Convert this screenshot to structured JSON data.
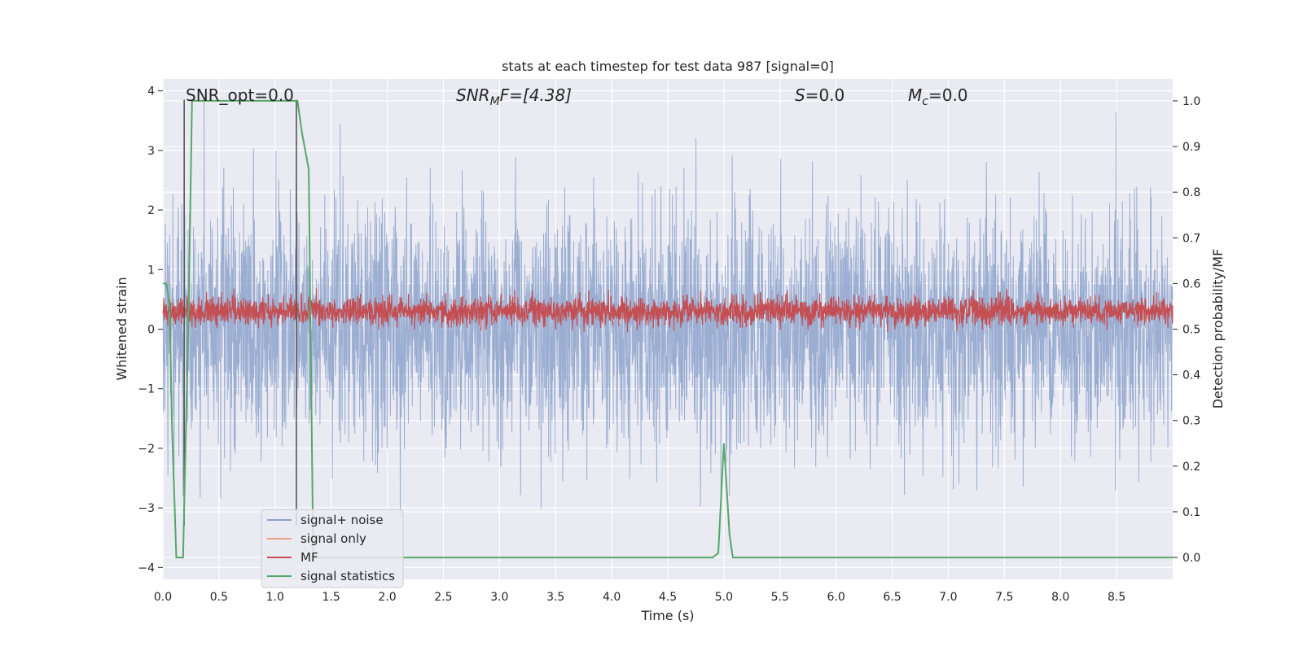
{
  "chart_data": {
    "type": "line",
    "title": "stats at each timestep for test data 987 [signal=0]",
    "xlabel": "Time (s)",
    "ylabel": "Whitened strain",
    "y2label": "Detection probability/MF",
    "xlim": [
      0.0,
      9.0
    ],
    "ylim": [
      -4.2,
      4.2
    ],
    "y2lim": [
      -0.048,
      1.048
    ],
    "xticks": [
      "0.0",
      "0.5",
      "1.0",
      "1.5",
      "2.0",
      "2.5",
      "3.0",
      "3.5",
      "4.0",
      "4.5",
      "5.0",
      "5.5",
      "6.0",
      "6.5",
      "7.0",
      "7.5",
      "8.0",
      "8.5"
    ],
    "yticks": [
      "4",
      "3",
      "2",
      "1",
      "0",
      "−1",
      "−2",
      "−3",
      "−4"
    ],
    "y2ticks": [
      "1.0",
      "0.9",
      "0.8",
      "0.7",
      "0.6",
      "0.5",
      "0.4",
      "0.3",
      "0.2",
      "0.1",
      "0.0"
    ],
    "grid": true,
    "legend_position": "lower-left",
    "annotations": {
      "snr_opt": "SNR_opt=0.0",
      "snr_mf_main": "SNR",
      "snr_mf_sub": "M",
      "snr_mf_rest": "F=[4.38]",
      "s_main": "S",
      "s_rest": "=0.0",
      "mc_main": "M",
      "mc_sub": "c",
      "mc_rest": "=0.0"
    },
    "series": [
      {
        "name": "signal+ noise",
        "color": "#8da3cc",
        "description_values": "whitened noise, approx. uniform band between -2 and 2.5 with spikes to ±3.8",
        "noise_amplitude": 1.0
      },
      {
        "name": "signal only",
        "color": "#e8a07f",
        "values": []
      },
      {
        "name": "MF",
        "color": "#c44e52",
        "center": 0.3,
        "noise_amplitude": 0.17
      },
      {
        "name": "signal statistics",
        "color": "#55a868",
        "axis": "right",
        "x": [
          0.0,
          0.03,
          0.06,
          0.08,
          0.12,
          0.18,
          0.23,
          0.26,
          0.8,
          1.2,
          1.24,
          1.3,
          1.34,
          1.5,
          4.9,
          4.95,
          5.0,
          5.05,
          5.08,
          9.0
        ],
        "y": [
          0.6,
          0.6,
          0.55,
          0.3,
          0.0,
          0.0,
          0.55,
          1.0,
          1.0,
          1.0,
          0.93,
          0.85,
          0.0,
          0.0,
          0.0,
          0.01,
          0.25,
          0.05,
          0.0,
          0.0
        ]
      }
    ],
    "vlines": [
      0.19,
      1.19
    ]
  }
}
